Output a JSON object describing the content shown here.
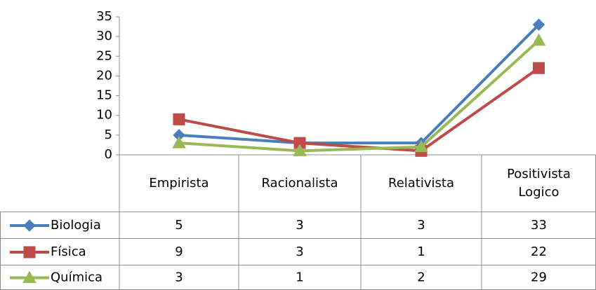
{
  "chart_data": {
    "type": "line",
    "categories": [
      "Empirista",
      "Racionalista",
      "Relativista",
      "Positivista Logico"
    ],
    "series": [
      {
        "name": "Biologia",
        "color": "#4a7ebb",
        "marker": "diamond",
        "values": [
          5,
          3,
          3,
          33
        ]
      },
      {
        "name": "Física",
        "color": "#be4b48",
        "marker": "square",
        "values": [
          9,
          3,
          1,
          22
        ]
      },
      {
        "name": "Química",
        "color": "#98b954",
        "marker": "triangle",
        "values": [
          3,
          1,
          2,
          29
        ]
      }
    ],
    "ylim": [
      0,
      35
    ],
    "yticks": [
      0,
      5,
      10,
      15,
      20,
      25,
      30,
      35
    ],
    "grid": false,
    "data_table": true
  }
}
